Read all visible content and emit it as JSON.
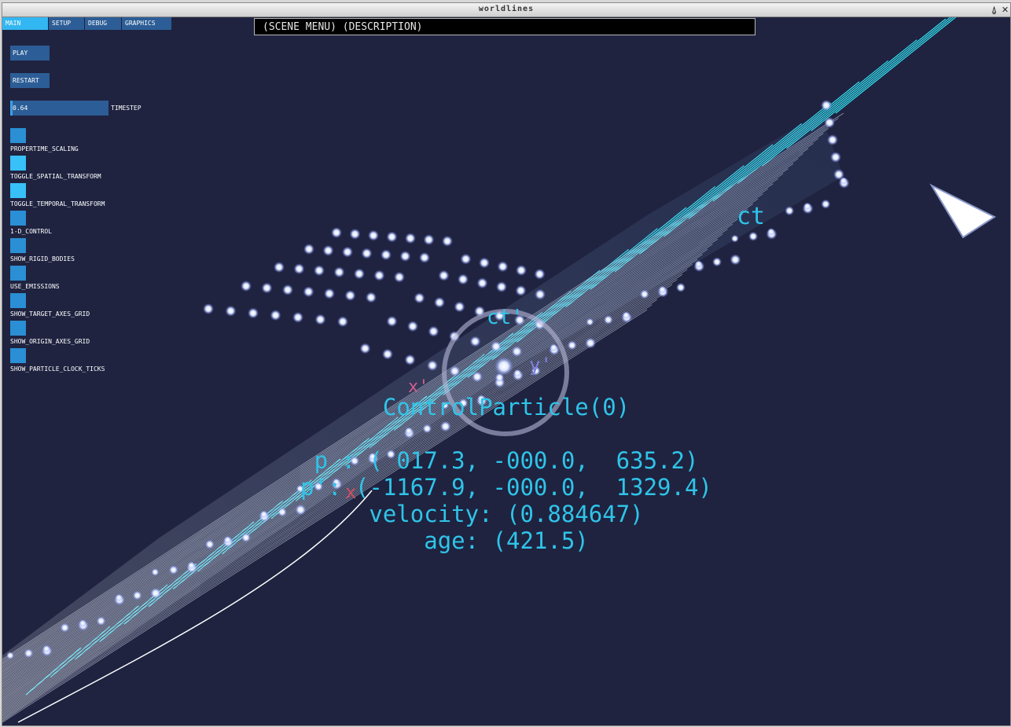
{
  "window": {
    "title": "worldlines"
  },
  "tabs": [
    {
      "label": "MAIN",
      "active": true
    },
    {
      "label": "SETUP",
      "active": false
    },
    {
      "label": "DEBUG",
      "active": false
    },
    {
      "label": "GRAPHICS",
      "active": false
    }
  ],
  "controls": {
    "play_label": "PLAY",
    "restart_label": "RESTART",
    "timestep": {
      "value": "0.64",
      "label": "TIMESTEP",
      "fill_fraction": 0.02
    },
    "toggles": [
      {
        "label": "PROPERTIME_SCALING",
        "on": false
      },
      {
        "label": "TOGGLE_SPATIAL_TRANSFORM",
        "on": true
      },
      {
        "label": "TOGGLE_TEMPORAL_TRANSFORM",
        "on": true
      },
      {
        "label": "1-D_CONTROL",
        "on": false
      },
      {
        "label": "SHOW_RIGID_BODIES",
        "on": false
      },
      {
        "label": "USE_EMISSIONS",
        "on": false
      },
      {
        "label": "SHOW_TARGET_AXES_GRID",
        "on": false
      },
      {
        "label": "SHOW_ORIGIN_AXES_GRID",
        "on": false
      },
      {
        "label": "SHOW_PARTICLE_CLOCK_TICKS",
        "on": false
      }
    ]
  },
  "scene_menu": {
    "text": "(SCENE MENU) (DESCRIPTION)"
  },
  "particle_info": {
    "name": "ControlParticle(0)",
    "p_line": "p : ( 017.3, -000.0,  635.2)",
    "p_prime_line": "p': (-1167.9, -000.0,  1329.4)",
    "velocity_line": "velocity: (0.884647)",
    "age_line": "age: (421.5)"
  },
  "axis_labels": {
    "ct": "ct",
    "ct_prime": "ct'",
    "x_prime": "x'",
    "y_prime": "y'",
    "x": "x"
  },
  "colors": {
    "background": "#1f2340",
    "accent": "#2fc4e8",
    "button": "#2c5d96",
    "tab_active": "#33b7f2"
  }
}
